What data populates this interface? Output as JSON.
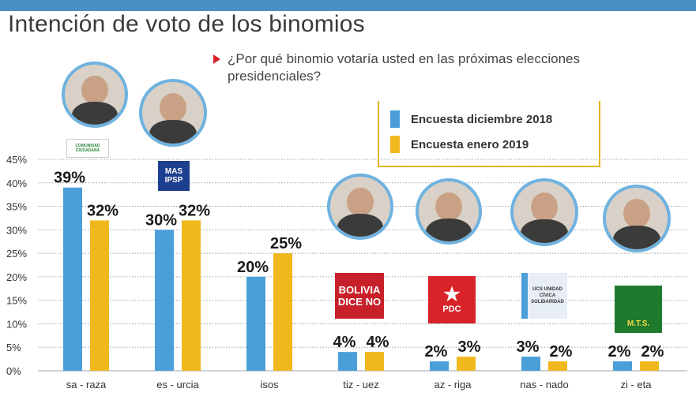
{
  "title": "Intención de voto de los binomios",
  "subtitle": "¿Por qué binomio votaría usted en las próximas elecciones presidenciales?",
  "legend": [
    {
      "label": "Encuesta diciembre 2018",
      "color": "#4a9fd8"
    },
    {
      "label": "Encuesta enero 2019",
      "color": "#f0b81c"
    }
  ],
  "logos": {
    "cc": "COMUNIDAD CIUDADANA",
    "mas": "MAS IPSP",
    "bdn": "BOLIVIA DICE NO",
    "pdc": "PDC",
    "ucs": "UCS UNIDAD CÍVICA SOLIDARIDAD",
    "mts": "M.T.S."
  },
  "chart_data": {
    "type": "bar",
    "categories": [
      "sa - raza",
      "es - urcia",
      "isos",
      "tiz - uez",
      "az - riga",
      "nas - nado",
      "zi - eta"
    ],
    "series": [
      {
        "name": "Encuesta diciembre 2018",
        "values": [
          39,
          30,
          20,
          4,
          2,
          3,
          2
        ],
        "color": "#4a9fd8"
      },
      {
        "name": "Encuesta enero 2019",
        "values": [
          32,
          32,
          25,
          4,
          3,
          2,
          2
        ],
        "color": "#f0b81c"
      }
    ],
    "data_labels": [
      [
        "39%",
        "32%"
      ],
      [
        "30%",
        "32%"
      ],
      [
        "20%",
        "25%"
      ],
      [
        "4%",
        "4%"
      ],
      [
        "2%",
        "3%"
      ],
      [
        "3%",
        "2%"
      ],
      [
        "2%",
        "2%"
      ]
    ],
    "yticks": [
      "0%",
      "5%",
      "10%",
      "15%",
      "20%",
      "25%",
      "30%",
      "35%",
      "40%",
      "45%"
    ],
    "ylim": [
      0,
      45
    ],
    "grid": true
  }
}
